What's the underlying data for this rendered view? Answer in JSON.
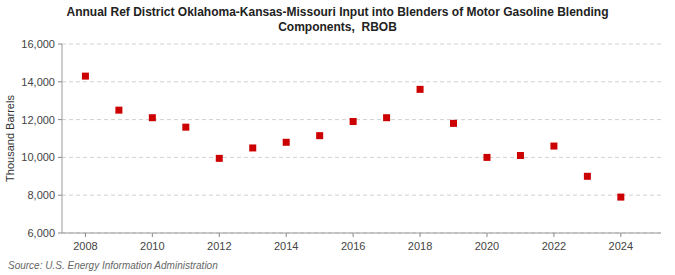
{
  "chart_data": {
    "type": "scatter",
    "title": "Annual Ref District Oklahoma-Kansas-Missouri Input into Blenders of Motor Gasoline Blending\nComponents,  RBOB",
    "y_label": "Thousand Barrels",
    "source": "Source: U.S. Energy Information Administration",
    "x": [
      2008,
      2009,
      2010,
      2011,
      2012,
      2013,
      2014,
      2015,
      2016,
      2017,
      2018,
      2019,
      2020,
      2021,
      2022,
      2023,
      2024
    ],
    "values": [
      14300,
      12500,
      12100,
      11600,
      9950,
      10500,
      10800,
      11150,
      11900,
      12100,
      13600,
      11800,
      10000,
      10100,
      10600,
      9000,
      7900
    ],
    "color": "#cc0000",
    "marker": "square",
    "xlim": [
      2007.3,
      2025.2
    ],
    "xticks": [
      2008,
      2010,
      2012,
      2014,
      2016,
      2018,
      2020,
      2022,
      2024
    ],
    "ylim": [
      6000,
      16000
    ],
    "yticks": [
      {
        "value": 6000,
        "label": "6,000"
      },
      {
        "value": 8000,
        "label": "8,000"
      },
      {
        "value": 10000,
        "label": "10,000"
      },
      {
        "value": 12000,
        "label": "12,000"
      },
      {
        "value": 14000,
        "label": "14,000"
      },
      {
        "value": 16000,
        "label": "16,000"
      }
    ],
    "grid": true
  }
}
